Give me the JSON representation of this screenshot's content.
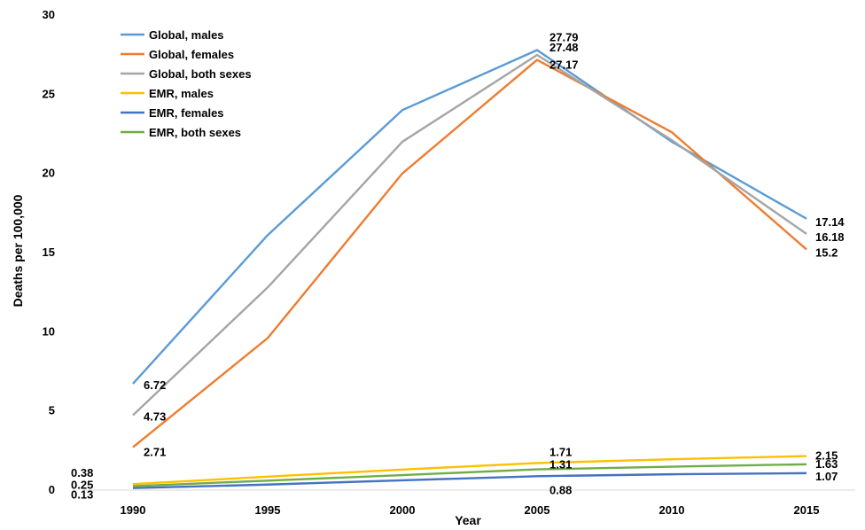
{
  "chart_data": {
    "type": "line",
    "xlabel": "Year",
    "ylabel": "Deaths per 100,000",
    "x": [
      1990,
      1995,
      2000,
      2005,
      2010,
      2015
    ],
    "xticks": [
      "1990",
      "1995",
      "2000",
      "2005",
      "2010",
      "2015"
    ],
    "ylim": [
      0,
      30
    ],
    "yticks": [
      "0",
      "5",
      "10",
      "15",
      "20",
      "25",
      "30"
    ],
    "grid": false,
    "legend_position": "top-left",
    "series": [
      {
        "name": "Global, males",
        "color": "#5B9BD5",
        "values": [
          6.72,
          16.1,
          24.0,
          27.79,
          22.0,
          17.14
        ]
      },
      {
        "name": "Global, females",
        "color": "#ED7D31",
        "values": [
          2.71,
          9.6,
          20.0,
          27.17,
          22.6,
          15.2
        ]
      },
      {
        "name": "Global, both sexes",
        "color": "#A5A5A5",
        "values": [
          4.73,
          12.8,
          22.0,
          27.48,
          22.1,
          16.18
        ]
      },
      {
        "name": "EMR, males",
        "color": "#FFC000",
        "values": [
          0.38,
          0.85,
          1.3,
          1.71,
          1.95,
          2.15
        ]
      },
      {
        "name": "EMR, females",
        "color": "#4472C4",
        "values": [
          0.13,
          0.35,
          0.62,
          0.88,
          1.0,
          1.07
        ]
      },
      {
        "name": "EMR, both sexes",
        "color": "#70AD47",
        "values": [
          0.25,
          0.6,
          0.95,
          1.31,
          1.48,
          1.63
        ]
      }
    ],
    "data_labels": [
      {
        "series": 0,
        "point": 0,
        "text": "6.72"
      },
      {
        "series": 2,
        "point": 0,
        "text": "4.73"
      },
      {
        "series": 1,
        "point": 0,
        "text": "2.71"
      },
      {
        "series": 3,
        "point": 0,
        "text": "0.38"
      },
      {
        "series": 5,
        "point": 0,
        "text": "0.25"
      },
      {
        "series": 4,
        "point": 0,
        "text": "0.13"
      },
      {
        "series": 0,
        "point": 3,
        "text": "27.79"
      },
      {
        "series": 2,
        "point": 3,
        "text": "27.48"
      },
      {
        "series": 1,
        "point": 3,
        "text": "27.17"
      },
      {
        "series": 3,
        "point": 3,
        "text": "1.71"
      },
      {
        "series": 5,
        "point": 3,
        "text": "1.31"
      },
      {
        "series": 4,
        "point": 3,
        "text": "0.88"
      },
      {
        "series": 0,
        "point": 5,
        "text": "17.14"
      },
      {
        "series": 2,
        "point": 5,
        "text": "16.18"
      },
      {
        "series": 1,
        "point": 5,
        "text": "15.2"
      },
      {
        "series": 3,
        "point": 5,
        "text": "2.15"
      },
      {
        "series": 5,
        "point": 5,
        "text": "1.63"
      },
      {
        "series": 4,
        "point": 5,
        "text": "1.07"
      }
    ]
  }
}
